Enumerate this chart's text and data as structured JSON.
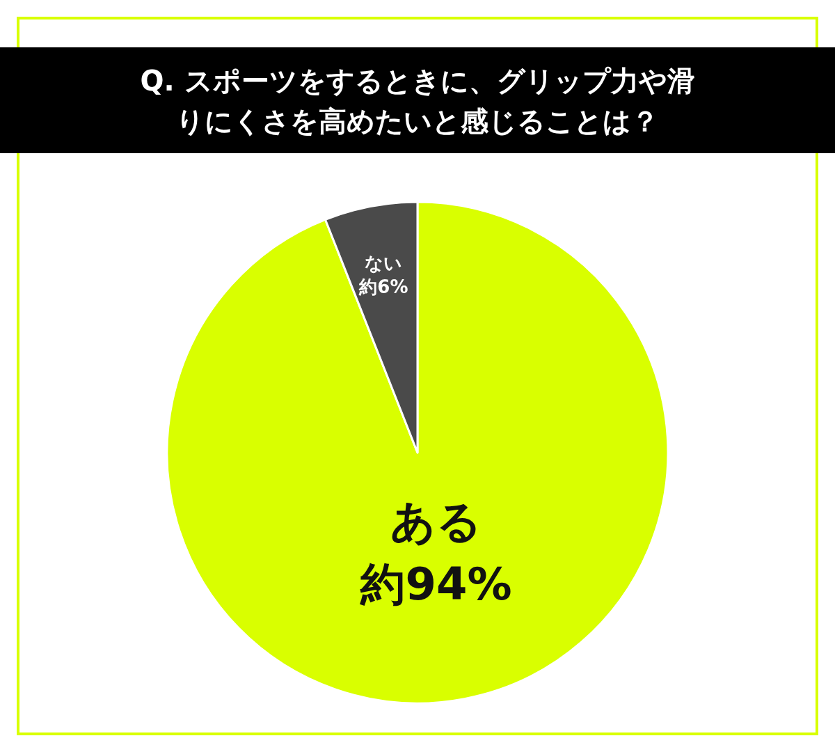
{
  "chart_data": {
    "type": "pie",
    "title": "Q. スポーツをするときに、グリップ力や滑りにくさを高めたいと感じることは？",
    "categories": [
      "ある",
      "ない"
    ],
    "values": [
      94,
      6
    ],
    "colors": [
      "#d9ff00",
      "#4a4a4a"
    ],
    "value_labels": [
      "約94%",
      "約6%"
    ]
  }
}
